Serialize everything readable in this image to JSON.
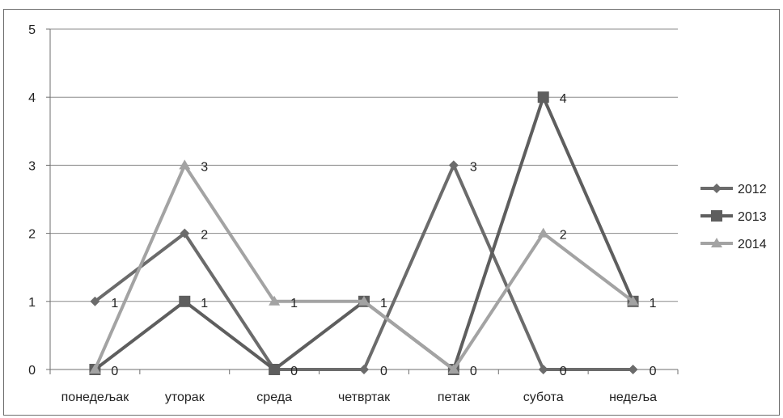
{
  "chart_data": {
    "type": "line",
    "title": "",
    "xlabel": "",
    "ylabel": "",
    "categories": [
      "понедељак",
      "уторак",
      "среда",
      "четвртак",
      "петак",
      "субота",
      "недеља"
    ],
    "ylim": [
      0,
      5
    ],
    "yticks": [
      0,
      1,
      2,
      3,
      4,
      5
    ],
    "grid": true,
    "legend_position": "right",
    "series": [
      {
        "name": "2012",
        "values": [
          1,
          2,
          0,
          0,
          3,
          0,
          0
        ],
        "marker": "diamond",
        "color": "#6b6b6b"
      },
      {
        "name": "2013",
        "values": [
          0,
          1,
          0,
          1,
          0,
          4,
          1
        ],
        "marker": "square",
        "color": "#5e5e5e"
      },
      {
        "name": "2014",
        "values": [
          0,
          3,
          1,
          1,
          0,
          2,
          1
        ],
        "marker": "triangle",
        "color": "#a3a3a3"
      }
    ]
  }
}
